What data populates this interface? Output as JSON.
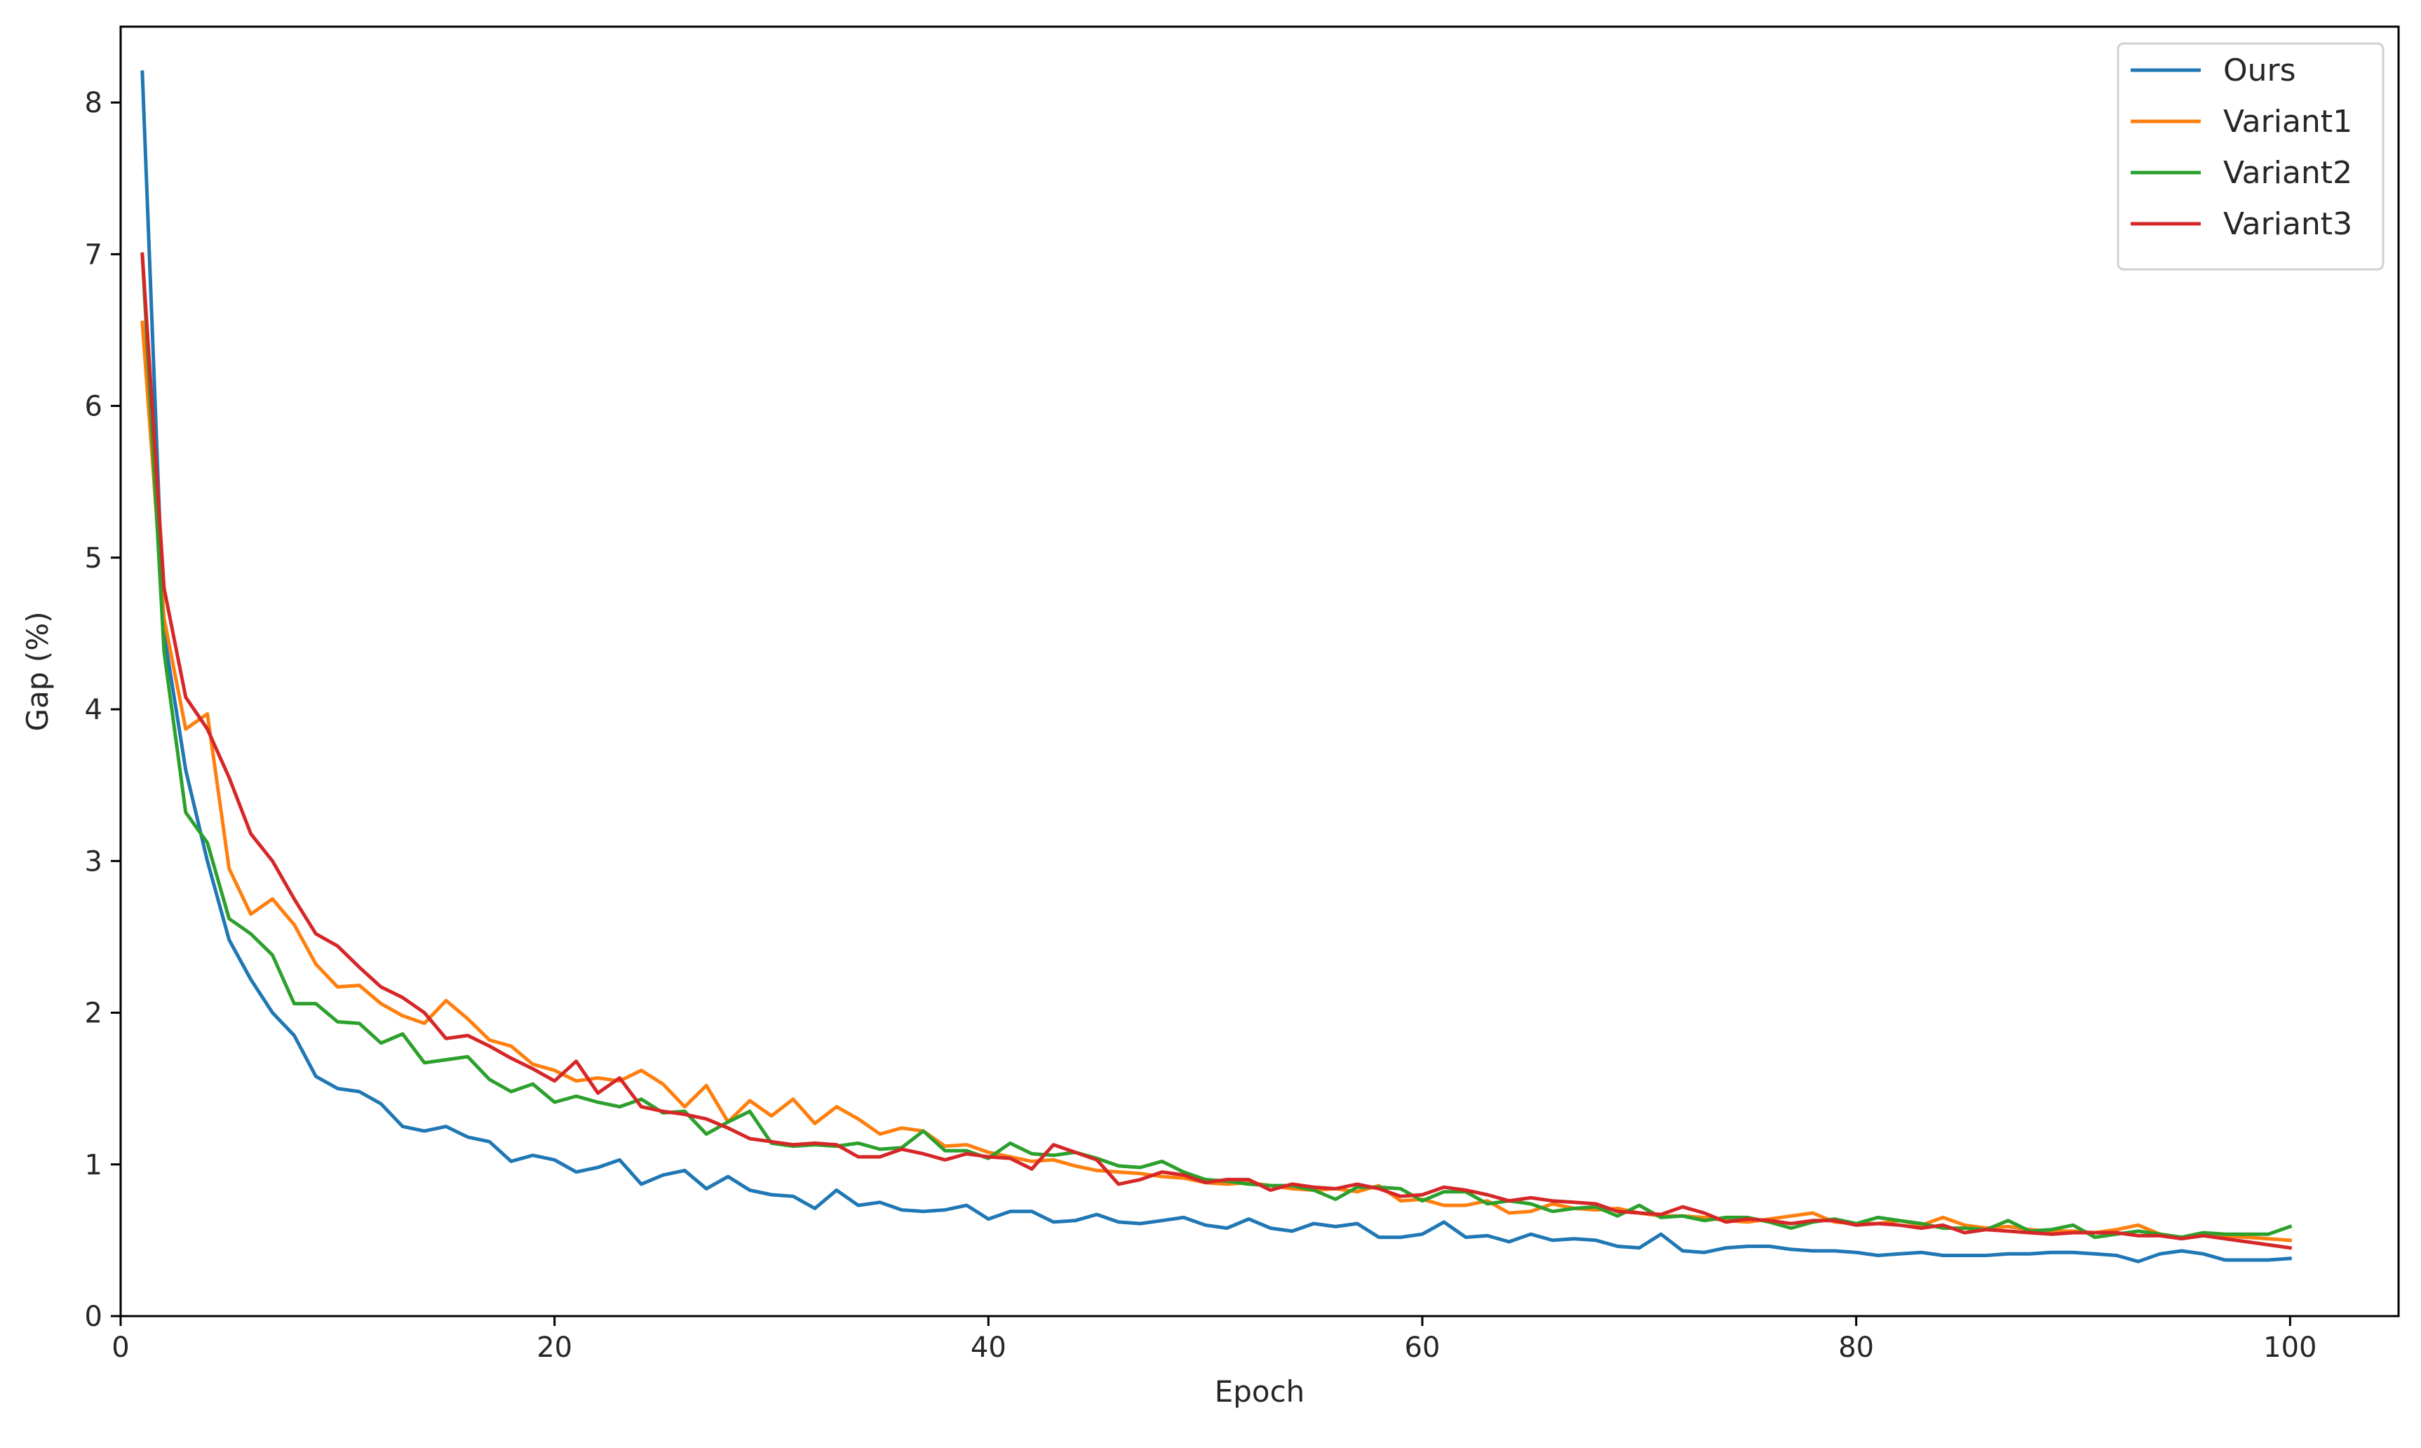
{
  "chart_data": {
    "type": "line",
    "title": "",
    "xlabel": "Epoch",
    "ylabel": "Gap (%)",
    "xlim": [
      0,
      105
    ],
    "ylim": [
      0,
      8.5
    ],
    "xticks": [
      0,
      20,
      40,
      60,
      80,
      100
    ],
    "yticks": [
      0,
      1,
      2,
      3,
      4,
      5,
      6,
      7,
      8
    ],
    "xtick_labels": [
      "0",
      "20",
      "40",
      "60",
      "80",
      "100"
    ],
    "ytick_labels": [
      "0",
      "1",
      "2",
      "3",
      "4",
      "5",
      "6",
      "7",
      "8"
    ],
    "grid": false,
    "legend_position": "upper right",
    "x": [
      1,
      2,
      3,
      4,
      5,
      6,
      7,
      8,
      9,
      10,
      11,
      12,
      13,
      14,
      15,
      16,
      17,
      18,
      19,
      20,
      21,
      22,
      23,
      24,
      25,
      26,
      27,
      28,
      29,
      30,
      31,
      32,
      33,
      34,
      35,
      36,
      37,
      38,
      39,
      40,
      41,
      42,
      43,
      44,
      45,
      46,
      47,
      48,
      49,
      50,
      51,
      52,
      53,
      54,
      55,
      56,
      57,
      58,
      59,
      60,
      61,
      62,
      63,
      64,
      65,
      66,
      67,
      68,
      69,
      70,
      71,
      72,
      73,
      74,
      75,
      76,
      77,
      78,
      79,
      80,
      81,
      82,
      83,
      84,
      85,
      86,
      87,
      88,
      89,
      90,
      91,
      92,
      93,
      94,
      95,
      96,
      97,
      98,
      99,
      100
    ],
    "series": [
      {
        "name": "Ours",
        "color": "#1f77b4",
        "values": [
          8.2,
          4.5,
          3.6,
          3.0,
          2.48,
          2.22,
          2.0,
          1.85,
          1.58,
          1.5,
          1.48,
          1.4,
          1.25,
          1.22,
          1.25,
          1.18,
          1.15,
          1.02,
          1.06,
          1.03,
          0.95,
          0.98,
          1.03,
          0.87,
          0.93,
          0.96,
          0.84,
          0.92,
          0.83,
          0.8,
          0.79,
          0.71,
          0.83,
          0.73,
          0.75,
          0.7,
          0.69,
          0.7,
          0.73,
          0.64,
          0.69,
          0.69,
          0.62,
          0.63,
          0.67,
          0.62,
          0.61,
          0.63,
          0.65,
          0.6,
          0.58,
          0.64,
          0.58,
          0.56,
          0.61,
          0.59,
          0.61,
          0.52,
          0.52,
          0.54,
          0.62,
          0.52,
          0.53,
          0.49,
          0.54,
          0.5,
          0.51,
          0.5,
          0.46,
          0.45,
          0.54,
          0.43,
          0.42,
          0.45,
          0.46,
          0.46,
          0.44,
          0.43,
          0.43,
          0.42,
          0.4,
          0.41,
          0.42,
          0.4,
          0.4,
          0.4,
          0.41,
          0.41,
          0.42,
          0.42,
          0.41,
          0.4,
          0.36,
          0.41,
          0.43,
          0.41,
          0.37,
          0.37,
          0.37,
          0.38
        ]
      },
      {
        "name": "Variant1",
        "color": "#ff7f0e",
        "values": [
          6.55,
          4.6,
          3.87,
          3.97,
          2.95,
          2.65,
          2.75,
          2.58,
          2.32,
          2.17,
          2.18,
          2.06,
          1.98,
          1.93,
          2.08,
          1.96,
          1.82,
          1.78,
          1.66,
          1.62,
          1.55,
          1.57,
          1.55,
          1.62,
          1.53,
          1.38,
          1.52,
          1.28,
          1.42,
          1.32,
          1.43,
          1.27,
          1.38,
          1.3,
          1.2,
          1.24,
          1.22,
          1.12,
          1.13,
          1.08,
          1.05,
          1.02,
          1.03,
          0.99,
          0.96,
          0.95,
          0.94,
          0.92,
          0.91,
          0.88,
          0.87,
          0.88,
          0.86,
          0.84,
          0.83,
          0.84,
          0.82,
          0.86,
          0.76,
          0.77,
          0.73,
          0.73,
          0.76,
          0.68,
          0.69,
          0.74,
          0.71,
          0.7,
          0.71,
          0.68,
          0.66,
          0.66,
          0.65,
          0.63,
          0.62,
          0.64,
          0.66,
          0.68,
          0.62,
          0.61,
          0.61,
          0.63,
          0.6,
          0.65,
          0.6,
          0.58,
          0.59,
          0.57,
          0.56,
          0.56,
          0.55,
          0.57,
          0.6,
          0.54,
          0.52,
          0.54,
          0.53,
          0.52,
          0.51,
          0.5
        ]
      },
      {
        "name": "Variant2",
        "color": "#2ca02c",
        "values": [
          7.0,
          4.38,
          3.32,
          3.12,
          2.62,
          2.52,
          2.38,
          2.06,
          2.06,
          1.94,
          1.93,
          1.8,
          1.86,
          1.67,
          1.69,
          1.71,
          1.56,
          1.48,
          1.53,
          1.41,
          1.45,
          1.41,
          1.38,
          1.43,
          1.34,
          1.35,
          1.2,
          1.28,
          1.35,
          1.14,
          1.12,
          1.13,
          1.12,
          1.14,
          1.1,
          1.11,
          1.22,
          1.09,
          1.09,
          1.04,
          1.14,
          1.07,
          1.06,
          1.08,
          1.04,
          0.99,
          0.98,
          1.02,
          0.95,
          0.9,
          0.89,
          0.87,
          0.86,
          0.86,
          0.83,
          0.77,
          0.85,
          0.85,
          0.84,
          0.76,
          0.82,
          0.82,
          0.74,
          0.76,
          0.74,
          0.69,
          0.71,
          0.72,
          0.66,
          0.73,
          0.65,
          0.66,
          0.63,
          0.65,
          0.65,
          0.62,
          0.58,
          0.62,
          0.64,
          0.61,
          0.65,
          0.63,
          0.61,
          0.58,
          0.58,
          0.57,
          0.63,
          0.56,
          0.57,
          0.6,
          0.52,
          0.54,
          0.56,
          0.54,
          0.52,
          0.55,
          0.54,
          0.54,
          0.54,
          0.59
        ]
      },
      {
        "name": "Variant3",
        "color": "#d62728",
        "values": [
          7.0,
          4.8,
          4.08,
          3.87,
          3.55,
          3.18,
          3.0,
          2.75,
          2.52,
          2.44,
          2.3,
          2.17,
          2.1,
          2.0,
          1.83,
          1.85,
          1.78,
          1.7,
          1.63,
          1.55,
          1.68,
          1.47,
          1.57,
          1.38,
          1.35,
          1.33,
          1.3,
          1.24,
          1.17,
          1.15,
          1.13,
          1.14,
          1.13,
          1.05,
          1.05,
          1.1,
          1.07,
          1.03,
          1.07,
          1.05,
          1.04,
          0.97,
          1.13,
          1.08,
          1.03,
          0.87,
          0.9,
          0.95,
          0.93,
          0.88,
          0.9,
          0.9,
          0.83,
          0.87,
          0.85,
          0.84,
          0.87,
          0.84,
          0.79,
          0.8,
          0.85,
          0.83,
          0.8,
          0.76,
          0.78,
          0.76,
          0.75,
          0.74,
          0.69,
          0.68,
          0.67,
          0.72,
          0.68,
          0.62,
          0.64,
          0.63,
          0.61,
          0.63,
          0.63,
          0.6,
          0.61,
          0.6,
          0.58,
          0.6,
          0.55,
          0.57,
          0.56,
          0.55,
          0.54,
          0.55,
          0.55,
          0.55,
          0.53,
          0.53,
          0.51,
          0.53,
          0.51,
          0.49,
          0.47,
          0.45
        ]
      }
    ]
  }
}
